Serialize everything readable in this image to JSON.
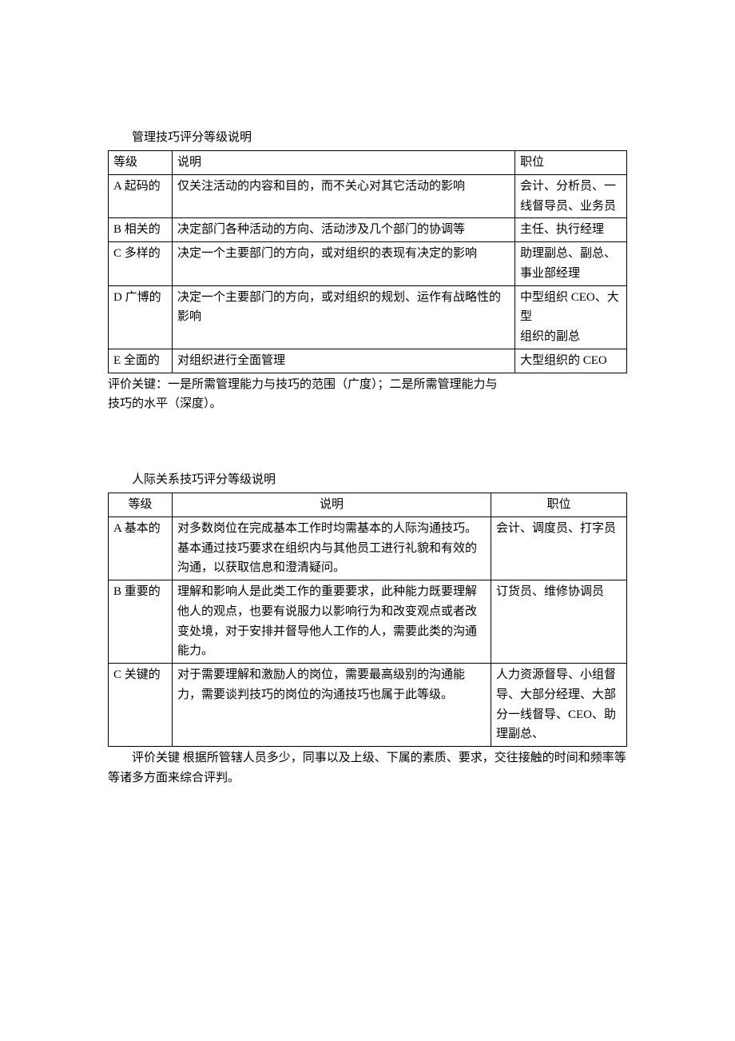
{
  "table1": {
    "title": "管理技巧评分等级说明",
    "headers": {
      "level": "等级",
      "desc": "说明",
      "position": "职位"
    },
    "rows": [
      {
        "level": "A 起码的",
        "desc": "仅关注活动的内容和目的，而不关心对其它活动的影响",
        "position": "会计、分析员、一线督导员、业务员"
      },
      {
        "level": "B 相关的",
        "desc": "决定部门各种活动的方向、活动涉及几个部门的协调等",
        "position": "主任、执行经理"
      },
      {
        "level": "C 多样的",
        "desc": "决定一个主要部门的方向，或对组织的表现有决定的影响",
        "position": "助理副总、副总、事业部经理"
      },
      {
        "level": "D 广博的",
        "desc": "决定一个主要部门的方向，或对组织的规划、运作有战略性的影响",
        "position": "中型组织 CEO、大型\n组织的副总"
      },
      {
        "level": "E 全面的",
        "desc": "对组织进行全面管理",
        "position": "大型组织的 CEO"
      }
    ],
    "caption": "评价关键：一是所需管理能力与技巧的范围（广度）；二是所需管理能力与\n技巧的水平（深度）。"
  },
  "table2": {
    "title": "人际关系技巧评分等级说明",
    "headers": {
      "level": "等级",
      "desc": "说明",
      "position": "职位"
    },
    "rows": [
      {
        "level": "A 基本的",
        "desc": "对多数岗位在完成基本工作时均需基本的人际沟通技巧。基本通过技巧要求在组织内与其他员工进行礼貌和有效的沟通，以获取信息和澄清疑问。",
        "position": "会计、调度员、打字员"
      },
      {
        "level": "B 重要的",
        "desc": "理解和影响人是此类工作的重要要求，此种能力既要理解他人的观点，也要有说服力以影响行为和改变观点或者改变处境，对于安排并督导他人工作的人，需要此类的沟通能力。",
        "position": "订货员、维修协调员"
      },
      {
        "level": "C 关键的",
        "desc": "对于需要理解和激励人的岗位，需要最高级别的沟通能力，需要谈判技巧的岗位的沟通技巧也属于此等级。",
        "position": "人力资源督导、小组督导、大部分经理、大部分一线督导、CEO、助理副总、"
      }
    ],
    "caption": "评价关键 根据所管辖人员多少，同事以及上级、下属的素质、要求，交往接触的时间和频率等等诸多方面来综合评判。"
  }
}
